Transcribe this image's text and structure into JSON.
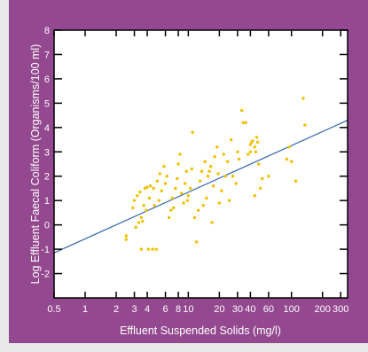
{
  "chart_data": {
    "type": "scatter",
    "title": "",
    "xlabel": "Effluent Suspended Solids (mg/l)",
    "ylabel": "Log Effluent Faecal Coliform (Organisms/100 ml)",
    "x_scale": "log",
    "xlim": [
      0.5,
      350
    ],
    "ylim": [
      -3,
      8
    ],
    "x_ticks": [
      {
        "v": 0.5,
        "label": "0.5"
      },
      {
        "v": 1,
        "label": "1"
      },
      {
        "v": 2,
        "label": "2"
      },
      {
        "v": 3,
        "label": "3"
      },
      {
        "v": 4,
        "label": "4"
      },
      {
        "v": 6,
        "label": "6"
      },
      {
        "v": 8,
        "label": "8"
      },
      {
        "v": 10,
        "label": "10"
      },
      {
        "v": 20,
        "label": "20"
      },
      {
        "v": 30,
        "label": "30"
      },
      {
        "v": 40,
        "label": "40"
      },
      {
        "v": 60,
        "label": "60"
      },
      {
        "v": 100,
        "label": "100"
      },
      {
        "v": 200,
        "label": "200"
      },
      {
        "v": 300,
        "label": "300"
      }
    ],
    "y_ticks": [
      {
        "v": -2,
        "label": "-2"
      },
      {
        "v": -1,
        "label": "-1"
      },
      {
        "v": 0,
        "label": "0"
      },
      {
        "v": 1,
        "label": "1"
      },
      {
        "v": 2,
        "label": "2"
      },
      {
        "v": 3,
        "label": "3"
      },
      {
        "v": 4,
        "label": "4"
      },
      {
        "v": 5,
        "label": "5"
      },
      {
        "v": 6,
        "label": "6"
      },
      {
        "v": 7,
        "label": "7"
      },
      {
        "v": 8,
        "label": "8"
      }
    ],
    "grid": false,
    "legend": "none",
    "regression_line": {
      "x": [
        0.5,
        350
      ],
      "y": [
        -1.15,
        4.3
      ]
    },
    "series": [
      {
        "points": [
          [
            2.5,
            -0.6
          ],
          [
            2.5,
            -0.45
          ],
          [
            3.1,
            -0.1
          ],
          [
            3.3,
            0.1
          ],
          [
            3.5,
            0.3
          ],
          [
            3.7,
            0.8
          ],
          [
            3.0,
            1.0
          ],
          [
            3.2,
            1.2
          ],
          [
            3.4,
            1.35
          ],
          [
            3.5,
            -1.0
          ],
          [
            3.9,
            0.6
          ],
          [
            4.2,
            1.1
          ],
          [
            4.1,
            -1.0
          ],
          [
            4.5,
            -1.0
          ],
          [
            4.9,
            -1.0
          ],
          [
            4.7,
            0.8
          ],
          [
            5.2,
            1.0
          ],
          [
            5.5,
            1.4
          ],
          [
            3.8,
            1.5
          ],
          [
            4.0,
            1.55
          ],
          [
            4.3,
            1.6
          ],
          [
            4.6,
            1.5
          ],
          [
            5.0,
            1.8
          ],
          [
            5.3,
            2.1
          ],
          [
            5.8,
            2.4
          ],
          [
            6.2,
            2.0
          ],
          [
            6.5,
            0.3
          ],
          [
            6.8,
            0.6
          ],
          [
            7.0,
            1.1
          ],
          [
            7.5,
            1.5
          ],
          [
            7.8,
            1.9
          ],
          [
            8.0,
            2.5
          ],
          [
            8.3,
            2.9
          ],
          [
            8.6,
            1.3
          ],
          [
            9.0,
            0.9
          ],
          [
            9.3,
            1.7
          ],
          [
            9.6,
            2.2
          ],
          [
            10.0,
            1.2
          ],
          [
            10.5,
            1.5
          ],
          [
            10.8,
            2.3
          ],
          [
            11.0,
            3.8
          ],
          [
            11.5,
            0.3
          ],
          [
            12.0,
            -0.7
          ],
          [
            12.5,
            0.6
          ],
          [
            13.0,
            1.8
          ],
          [
            14.0,
            0.8
          ],
          [
            14.5,
            2.6
          ],
          [
            15.0,
            1.1
          ],
          [
            15.5,
            2.0
          ],
          [
            16.0,
            2.2
          ],
          [
            16.5,
            2.4
          ],
          [
            17.0,
            0.1
          ],
          [
            17.5,
            1.6
          ],
          [
            18.0,
            2.8
          ],
          [
            19.0,
            3.2
          ],
          [
            19.5,
            2.1
          ],
          [
            20.0,
            0.9
          ],
          [
            21.0,
            1.4
          ],
          [
            22.0,
            2.9
          ],
          [
            23.0,
            2.0
          ],
          [
            24.0,
            2.6
          ],
          [
            25.0,
            1.0
          ],
          [
            26.0,
            3.5
          ],
          [
            27.0,
            2.0
          ],
          [
            29.0,
            1.7
          ],
          [
            30.0,
            3.0
          ],
          [
            31.0,
            2.7
          ],
          [
            33.0,
            4.7
          ],
          [
            34.0,
            4.2
          ],
          [
            36.0,
            4.2
          ],
          [
            38.0,
            2.9
          ],
          [
            40.0,
            3.0
          ],
          [
            40.0,
            3.3
          ],
          [
            41.0,
            3.4
          ],
          [
            42.0,
            3.45
          ],
          [
            44.0,
            3.2
          ],
          [
            45.0,
            3.0
          ],
          [
            46.0,
            3.6
          ],
          [
            47.0,
            3.4
          ],
          [
            48.0,
            2.5
          ],
          [
            50.0,
            1.5
          ],
          [
            52.0,
            1.9
          ],
          [
            44.0,
            1.2
          ],
          [
            60.0,
            2.0
          ],
          [
            90.0,
            2.7
          ],
          [
            95.0,
            3.2
          ],
          [
            100.0,
            2.6
          ],
          [
            110.0,
            1.8
          ],
          [
            130.0,
            5.2
          ],
          [
            135.0,
            4.1
          ],
          [
            3.6,
            0.15
          ],
          [
            2.9,
            0.7
          ],
          [
            6.0,
            1.7
          ],
          [
            13.5,
            2.2
          ],
          [
            9.8,
            1.0
          ],
          [
            7.2,
            0.7
          ]
        ]
      }
    ]
  },
  "colors": {
    "card": "#93488f",
    "plot_bg": "#ffffff",
    "point": "#f0c000",
    "line": "#2f64a8",
    "axis": "#000000"
  }
}
